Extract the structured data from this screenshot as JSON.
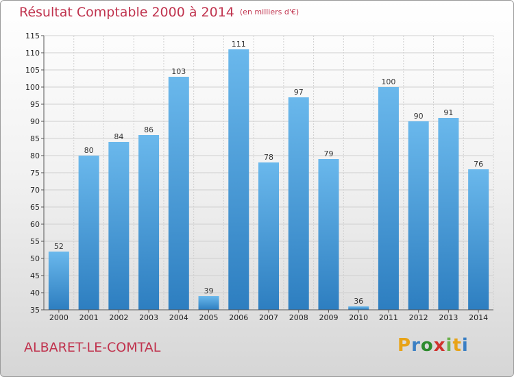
{
  "header": {
    "title": "Résultat Comptable 2000 à 2014",
    "unit": "(en milliers d'€)"
  },
  "footer": {
    "commune": "ALBARET-LE-COMTAL",
    "logo_letters": [
      "P",
      "r",
      "o",
      "x",
      "i",
      "t",
      "i"
    ],
    "logo_colors": [
      "#e8a317",
      "#3a7fc4",
      "#2e8b2e",
      "#d0312d",
      "#6ab04c",
      "#e8a317",
      "#3a7fc4"
    ]
  },
  "chart_data": {
    "type": "bar",
    "title": "Résultat Comptable 2000 à 2014",
    "subtitle": "(en milliers d'€)",
    "xlabel": "",
    "ylabel": "",
    "categories": [
      "2000",
      "2001",
      "2002",
      "2003",
      "2004",
      "2005",
      "2006",
      "2007",
      "2008",
      "2009",
      "2010",
      "2011",
      "2012",
      "2013",
      "2014"
    ],
    "values": [
      52,
      80,
      84,
      86,
      103,
      39,
      111,
      78,
      97,
      79,
      36,
      100,
      90,
      91,
      76
    ],
    "ylim": [
      35,
      115
    ],
    "yticks": [
      35,
      40,
      45,
      50,
      55,
      60,
      65,
      70,
      75,
      80,
      85,
      90,
      95,
      100,
      105,
      110,
      115
    ],
    "grid": true,
    "legend": "none",
    "colors": {
      "bar_top": "#6ab8ec",
      "bar_bottom": "#2d7ec0",
      "grid": "#cfcfcf"
    }
  }
}
